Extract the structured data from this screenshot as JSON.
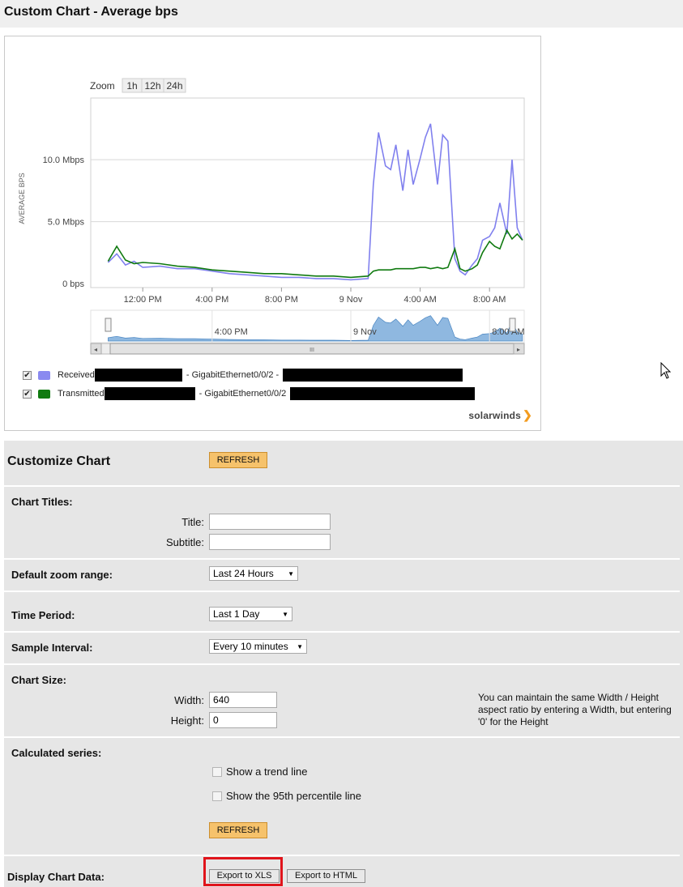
{
  "page": {
    "title": "Custom Chart - Average bps"
  },
  "chart": {
    "zoom": {
      "label": "Zoom",
      "options": [
        "1h",
        "12h",
        "24h"
      ]
    },
    "brand": "solarwinds",
    "legend": [
      {
        "checked": true,
        "color": "#8080ee",
        "label": "Received",
        "interface": "- GigabitEthernet0/0/2 -"
      },
      {
        "checked": true,
        "color": "#107a10",
        "label": "Transmitted",
        "interface": "- GigabitEthernet0/0/2"
      }
    ],
    "navigator": {
      "labels": [
        "4:00 PM",
        "9 Nov",
        "8:00 AM"
      ],
      "scroll_grip": "III"
    }
  },
  "chart_data": {
    "type": "line",
    "title": "",
    "ylabel": "AVERAGE BPS",
    "ylim": [
      0,
      14
    ],
    "y_ticks": [
      "0 bps",
      "5.0 Mbps",
      "10.0 Mbps"
    ],
    "x_ticks": [
      "12:00 PM",
      "4:00 PM",
      "8:00 PM",
      "9 Nov",
      "4:00 AM",
      "8:00 AM"
    ],
    "x_hours": [
      0,
      0.5,
      1,
      1.5,
      2,
      3,
      4,
      5,
      6,
      7,
      8,
      9,
      10,
      11,
      12,
      13,
      14,
      15,
      15.3,
      15.6,
      16,
      16.3,
      16.6,
      17,
      17.3,
      17.6,
      18,
      18.3,
      18.6,
      19,
      19.3,
      19.6,
      20,
      20.3,
      20.6,
      21,
      21.3,
      21.6,
      22,
      22.3,
      22.6,
      23,
      23.3,
      23.6,
      23.9
    ],
    "series": [
      {
        "name": "Received",
        "color": "#8080ee",
        "values": [
          1.7,
          2.4,
          1.5,
          1.8,
          1.3,
          1.4,
          1.2,
          1.2,
          1.0,
          0.8,
          0.7,
          0.6,
          0.5,
          0.5,
          0.4,
          0.4,
          0.3,
          0.4,
          8.0,
          12.2,
          9.5,
          9.2,
          11.2,
          7.5,
          10.8,
          8.0,
          10.1,
          11.8,
          12.9,
          8.0,
          12.0,
          11.5,
          2.0,
          1.0,
          0.7,
          1.5,
          2.0,
          3.5,
          3.8,
          4.5,
          6.5,
          4.0,
          10.0,
          4.5,
          3.5
        ]
      },
      {
        "name": "Transmitted",
        "color": "#107a10",
        "values": [
          1.8,
          3.0,
          1.9,
          1.6,
          1.7,
          1.6,
          1.4,
          1.3,
          1.1,
          1.0,
          0.9,
          0.8,
          0.8,
          0.7,
          0.6,
          0.6,
          0.5,
          0.6,
          1.0,
          1.1,
          1.1,
          1.1,
          1.2,
          1.2,
          1.2,
          1.2,
          1.3,
          1.3,
          1.2,
          1.3,
          1.2,
          1.3,
          2.8,
          1.2,
          1.0,
          1.2,
          1.5,
          2.5,
          3.4,
          3.0,
          2.8,
          4.3,
          3.6,
          4.0,
          3.5
        ]
      }
    ]
  },
  "customize": {
    "heading": "Customize Chart",
    "refresh_label": "REFRESH",
    "chart_titles": {
      "label": "Chart Titles:",
      "title_label": "Title:",
      "title_value": "",
      "subtitle_label": "Subtitle:",
      "subtitle_value": ""
    },
    "zoom_range": {
      "label": "Default zoom range:",
      "value": "Last 24 Hours"
    },
    "time_period": {
      "label": "Time Period:",
      "value": "Last 1 Day"
    },
    "sample_interval": {
      "label": "Sample Interval:",
      "value": "Every 10 minutes"
    },
    "chart_size": {
      "label": "Chart Size:",
      "width_label": "Width:",
      "width_value": "640",
      "height_label": "Height:",
      "height_value": "0",
      "hint": "You can maintain the same Width / Height aspect ratio by entering a Width, but entering '0' for the Height"
    },
    "calculated": {
      "label": "Calculated series:",
      "trend": "Show a trend line",
      "percentile": "Show the 95th percentile line"
    },
    "display": {
      "label": "Display Chart Data:",
      "export_xls": "Export to XLS",
      "export_html": "Export to HTML"
    }
  }
}
